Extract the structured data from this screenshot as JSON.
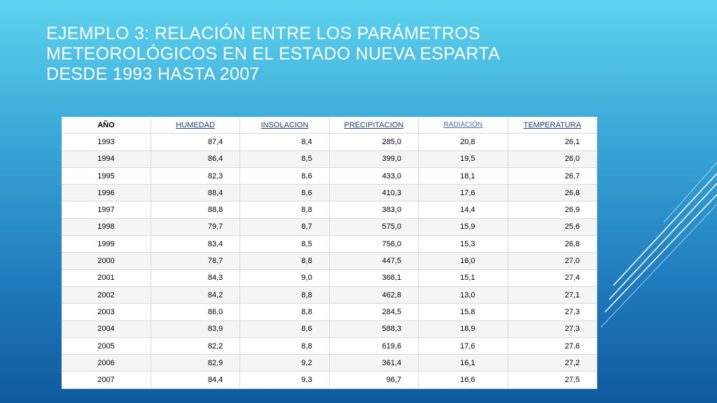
{
  "slide": {
    "title_lines": [
      "EJEMPLO 3: RELACIÓN ENTRE LOS PARÁMETROS",
      "METEOROLÓGICOS EN EL ESTADO NUEVA ESPARTA",
      "DESDE 1993 HASTA 2007"
    ]
  },
  "table": {
    "headers": [
      "AÑO",
      "HUMEDAD",
      "INSOLACION",
      "PRECIPITACION",
      "RADIACIÓN",
      "TEMPERATURA"
    ],
    "rows": [
      [
        "1993",
        "87,4",
        "8,4",
        "285,0",
        "20,8",
        "26,1"
      ],
      [
        "1994",
        "86,4",
        "8,5",
        "399,0",
        "19,5",
        "26,0"
      ],
      [
        "1995",
        "82,3",
        "8,6",
        "433,0",
        "18,1",
        "26,7"
      ],
      [
        "1996",
        "88,4",
        "8,6",
        "410,3",
        "17,6",
        "26,8"
      ],
      [
        "1997",
        "88,8",
        "8,8",
        "383,0",
        "14,4",
        "26,9"
      ],
      [
        "1998",
        "79,7",
        "8,7",
        "575,0",
        "15,9",
        "25,6"
      ],
      [
        "1999",
        "83,4",
        "8,5",
        "756,0",
        "15,3",
        "26,8"
      ],
      [
        "2000",
        "78,7",
        "8,8",
        "447,5",
        "16,0",
        "27,0"
      ],
      [
        "2001",
        "84,3",
        "9,0",
        "366,1",
        "15,1",
        "27,4"
      ],
      [
        "2002",
        "84,2",
        "8,8",
        "462,8",
        "13,0",
        "27,1"
      ],
      [
        "2003",
        "86,0",
        "8,8",
        "284,5",
        "15,8",
        "27,3"
      ],
      [
        "2004",
        "83,9",
        "8,6",
        "588,3",
        "18,9",
        "27,3"
      ],
      [
        "2005",
        "82,2",
        "8,8",
        "619,6",
        "17,6",
        "27,6"
      ],
      [
        "2006",
        "82,9",
        "9,2",
        "361,4",
        "16,1",
        "27,2"
      ],
      [
        "2007",
        "84,4",
        "9,3",
        "96,7",
        "16,6",
        "27,5"
      ]
    ]
  },
  "colors": {
    "background_top": "#5ed3ef",
    "background_bottom": "#0f5a9e",
    "title_text": "#ffffff",
    "header_link": "#1f3f7a"
  }
}
